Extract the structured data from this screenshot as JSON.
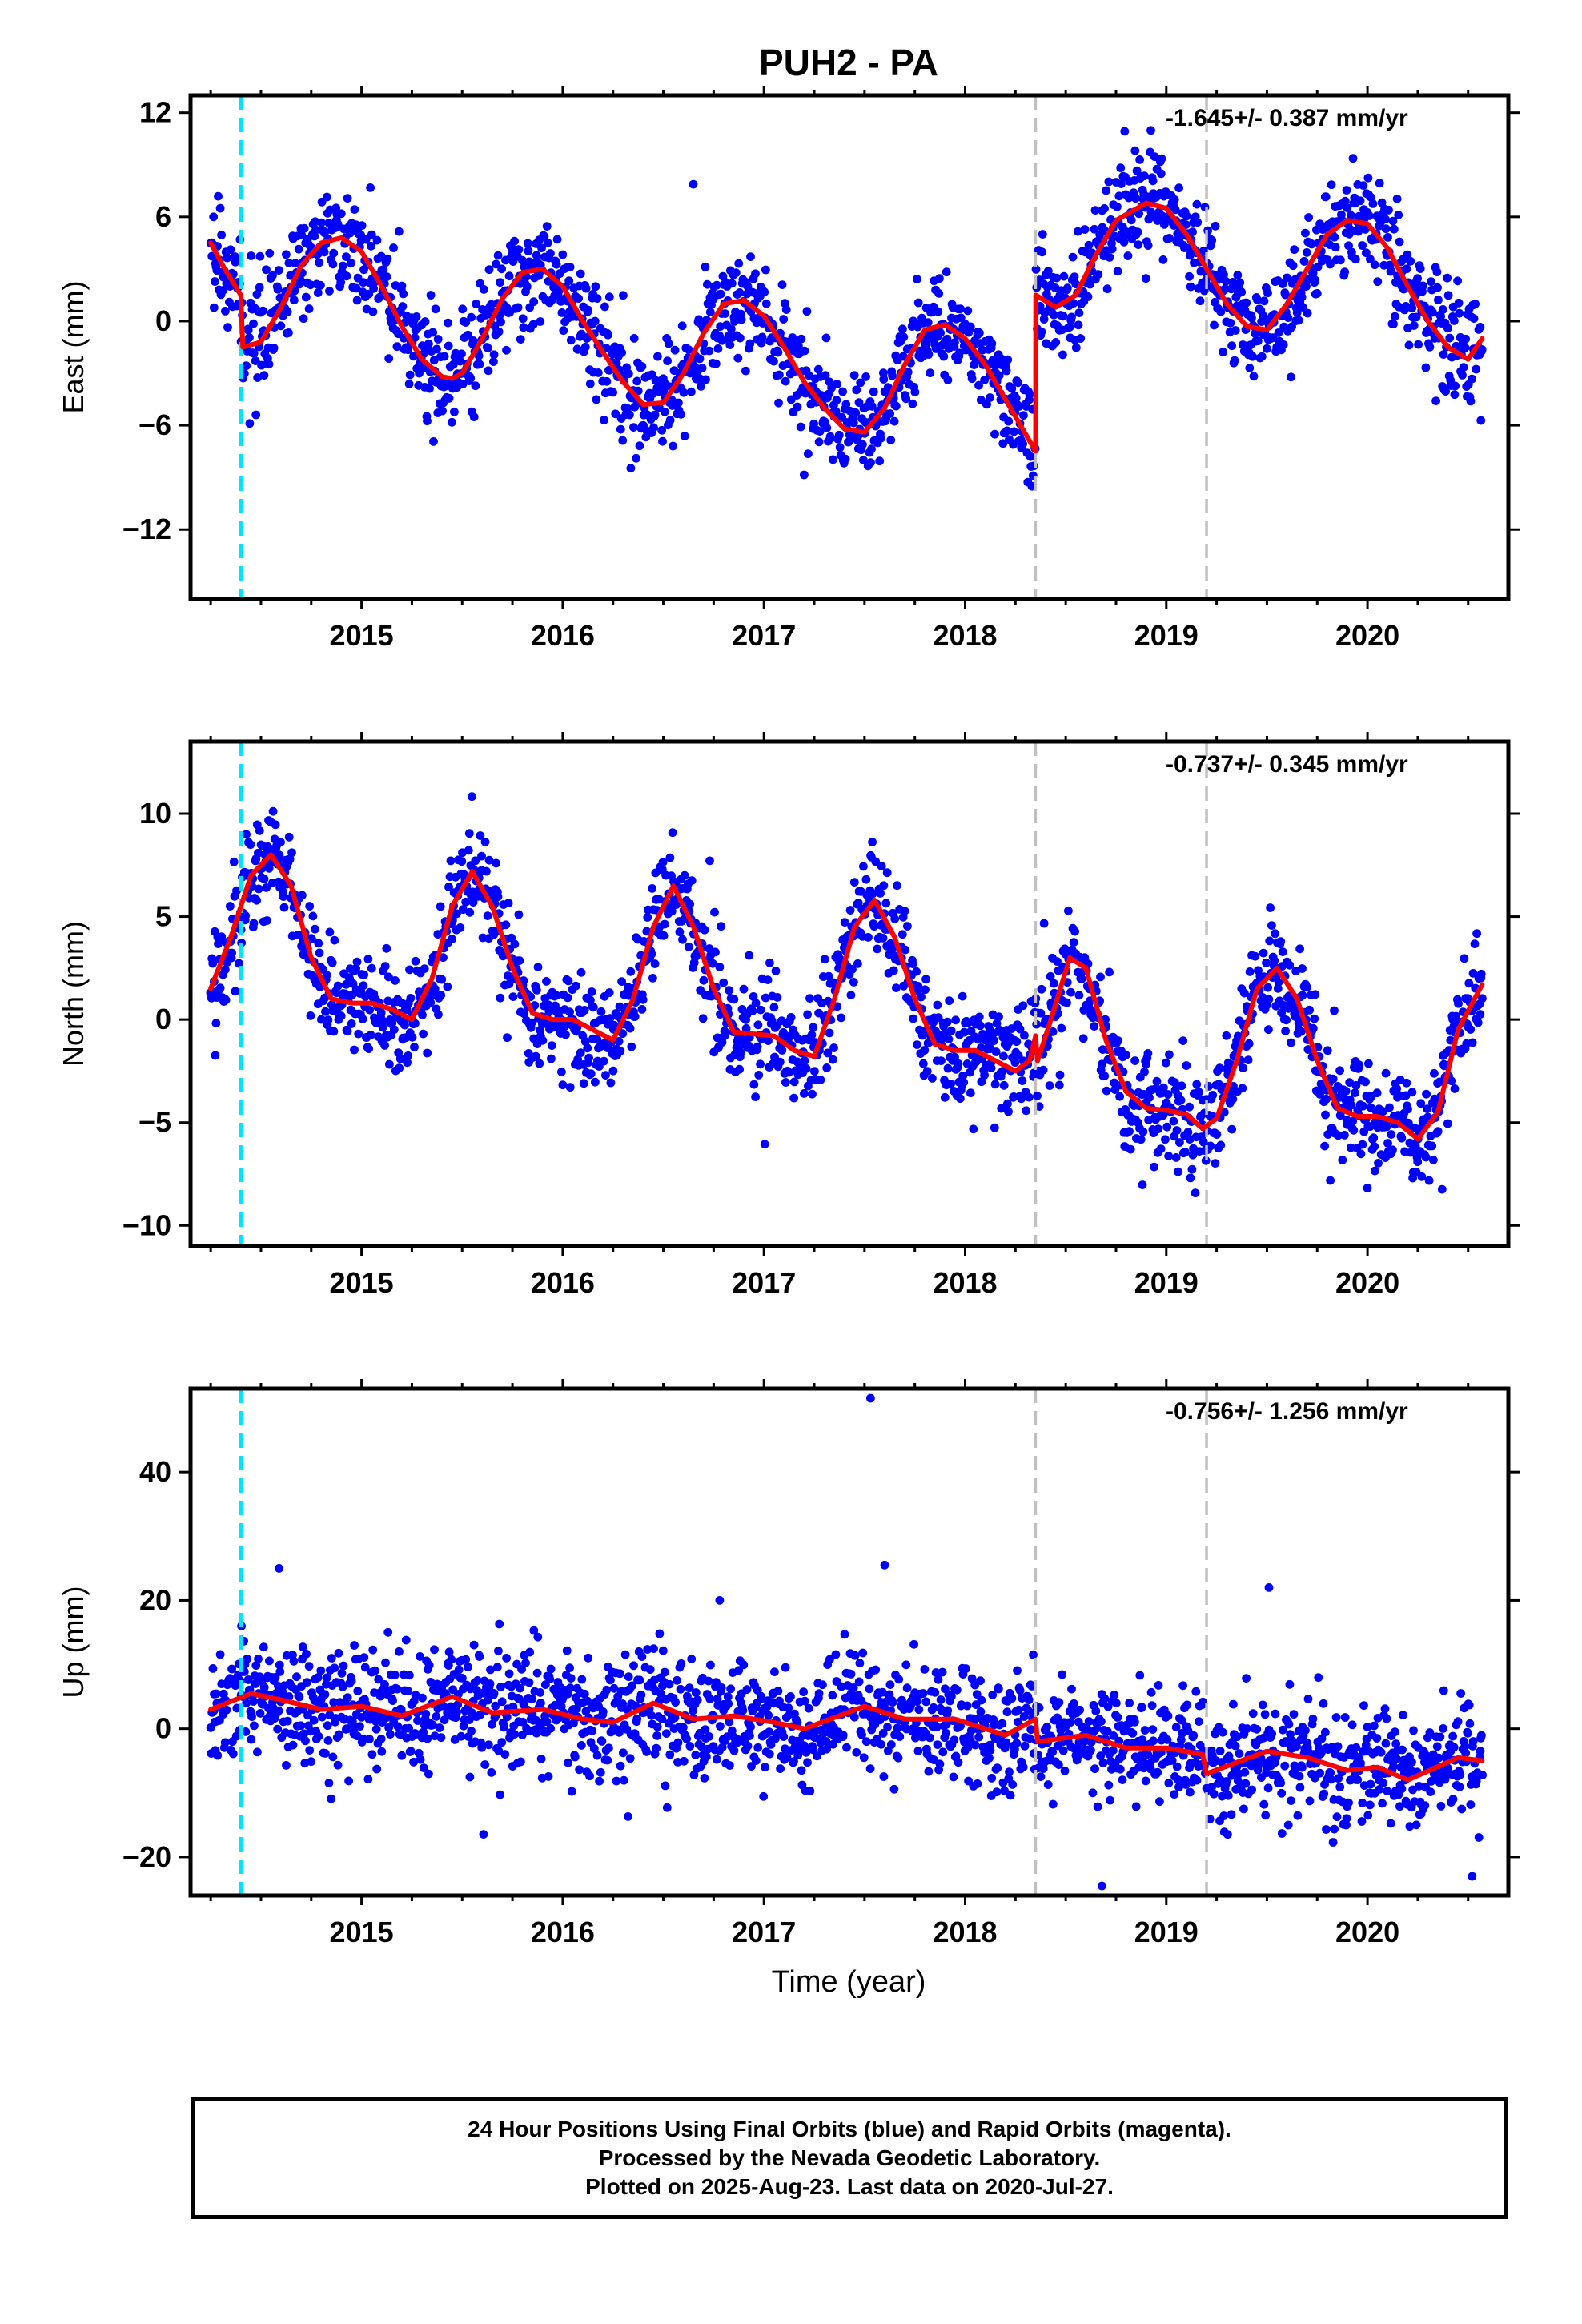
{
  "title": "PUH2 - PA",
  "xlabel": "Time (year)",
  "caption": {
    "line1": "24 Hour Positions Using Final Orbits (blue) and Rapid Orbits (magenta).",
    "line2": "Processed by the Nevada Geodetic Laboratory.",
    "line3": "Plotted on 2025-Aug-23. Last data on 2020-Jul-27."
  },
  "colors": {
    "points": "#0000ff",
    "model": "#ff0000",
    "antenna_change": "#00e5ff",
    "equipment_change": "#c0c0c0",
    "frame": "#000000"
  },
  "chart_data": [
    {
      "type": "scatter",
      "component": "east",
      "ylabel": "East (mm)",
      "rate_label": "-1.645+/- 0.387 mm/yr",
      "xlim": [
        2014.15,
        2020.7
      ],
      "ylim": [
        -16,
        13
      ],
      "xticks": [
        2015,
        2016,
        2017,
        2018,
        2019,
        2020
      ],
      "yticks": [
        12,
        6,
        0,
        -6,
        -12
      ],
      "ytick_labels": [
        "12",
        "6",
        "0",
        "−6",
        "−12"
      ],
      "discontinuities": {
        "cyan": [
          2014.4
        ],
        "gray": [
          2018.35,
          2019.2
        ]
      },
      "model": {
        "x": [
          2014.25,
          2014.32,
          2014.4,
          2014.41,
          2014.5,
          2014.6,
          2014.7,
          2014.8,
          2014.9,
          2015.0,
          2015.1,
          2015.2,
          2015.3,
          2015.4,
          2015.45,
          2015.5,
          2015.6,
          2015.7,
          2015.8,
          2015.9,
          2016.0,
          2016.1,
          2016.2,
          2016.3,
          2016.4,
          2016.5,
          2016.6,
          2016.7,
          2016.8,
          2016.9,
          2017.0,
          2017.1,
          2017.2,
          2017.3,
          2017.4,
          2017.5,
          2017.6,
          2017.7,
          2017.8,
          2017.9,
          2018.0,
          2018.1,
          2018.2,
          2018.3,
          2018.35,
          2018.351,
          2018.45,
          2018.55,
          2018.65,
          2018.75,
          2018.9,
          2019.0,
          2019.1,
          2019.2,
          2019.3,
          2019.4,
          2019.5,
          2019.6,
          2019.7,
          2019.8,
          2019.9,
          2020.0,
          2020.1,
          2020.2,
          2020.3,
          2020.4,
          2020.5,
          2020.57
        ],
        "y": [
          4.5,
          3.0,
          1.5,
          -1.5,
          -1.2,
          0.8,
          3.2,
          4.5,
          4.8,
          4.0,
          2.0,
          -0.3,
          -2.2,
          -3.2,
          -3.3,
          -3.0,
          -1.0,
          1.3,
          2.8,
          3.0,
          2.0,
          0.0,
          -1.8,
          -3.5,
          -4.8,
          -4.7,
          -3.0,
          -0.7,
          1.0,
          1.2,
          0.3,
          -1.5,
          -3.5,
          -5.0,
          -6.2,
          -6.4,
          -5.0,
          -2.5,
          -0.5,
          -0.2,
          -1.0,
          -2.5,
          -4.5,
          -6.5,
          -7.5,
          1.5,
          0.8,
          1.5,
          3.8,
          5.8,
          6.8,
          6.5,
          5.0,
          3.0,
          1.0,
          -0.3,
          -0.5,
          1.0,
          3.0,
          5.0,
          5.8,
          5.6,
          4.2,
          2.0,
          0.0,
          -1.5,
          -2.2,
          -1.0
        ]
      },
      "points": {
        "count": 1850,
        "noise_sd": 1.5
      }
    },
    {
      "type": "scatter",
      "component": "north",
      "ylabel": "North (mm)",
      "rate_label": "-0.737+/- 0.345 mm/yr",
      "xlim": [
        2014.15,
        2020.7
      ],
      "ylim": [
        -11,
        13.5
      ],
      "xticks": [
        2015,
        2016,
        2017,
        2018,
        2019,
        2020
      ],
      "yticks": [
        10,
        5,
        0,
        -5,
        -10
      ],
      "ytick_labels": [
        "10",
        "5",
        "0",
        "−5",
        "−10"
      ],
      "discontinuities": {
        "cyan": [
          2014.4
        ],
        "gray": [
          2018.35,
          2019.2
        ]
      },
      "model": {
        "x": [
          2014.25,
          2014.35,
          2014.45,
          2014.55,
          2014.65,
          2014.75,
          2014.85,
          2014.95,
          2015.05,
          2015.15,
          2015.25,
          2015.35,
          2015.45,
          2015.55,
          2015.65,
          2015.75,
          2015.85,
          2015.95,
          2016.05,
          2016.15,
          2016.25,
          2016.35,
          2016.45,
          2016.55,
          2016.65,
          2016.75,
          2016.85,
          2016.95,
          2017.05,
          2017.15,
          2017.25,
          2017.35,
          2017.45,
          2017.55,
          2017.65,
          2017.75,
          2017.85,
          2017.95,
          2018.05,
          2018.15,
          2018.25,
          2018.32,
          2018.35,
          2018.36,
          2018.42,
          2018.52,
          2018.6,
          2018.7,
          2018.8,
          2018.9,
          2019.0,
          2019.1,
          2019.18,
          2019.25,
          2019.35,
          2019.45,
          2019.55,
          2019.65,
          2019.75,
          2019.85,
          2019.95,
          2020.05,
          2020.15,
          2020.25,
          2020.35,
          2020.45,
          2020.57
        ],
        "y": [
          1.5,
          4.0,
          7.0,
          8.0,
          6.5,
          3.0,
          1.0,
          0.8,
          0.8,
          0.5,
          0.0,
          2.0,
          5.5,
          7.2,
          5.5,
          2.5,
          0.3,
          0.0,
          0.0,
          -0.5,
          -1.0,
          1.0,
          4.5,
          6.5,
          4.5,
          1.5,
          -0.6,
          -0.7,
          -0.8,
          -1.5,
          -1.8,
          1.0,
          4.5,
          5.8,
          4.0,
          1.0,
          -1.2,
          -1.5,
          -1.5,
          -2.0,
          -2.5,
          -2.0,
          -0.8,
          -2.0,
          -0.2,
          3.0,
          2.5,
          -1.0,
          -3.5,
          -4.3,
          -4.4,
          -4.6,
          -5.3,
          -4.8,
          -2.0,
          1.5,
          2.5,
          1.0,
          -2.0,
          -4.3,
          -4.7,
          -4.7,
          -5.0,
          -5.8,
          -4.5,
          -0.5,
          1.7
        ]
      },
      "points": {
        "count": 1850,
        "noise_sd": 1.3
      }
    },
    {
      "type": "scatter",
      "component": "up",
      "ylabel": "Up (mm)",
      "rate_label": "-0.756+/- 1.256 mm/yr",
      "xlim": [
        2014.15,
        2020.7
      ],
      "ylim": [
        -26,
        53
      ],
      "xticks": [
        2015,
        2016,
        2017,
        2018,
        2019,
        2020
      ],
      "yticks": [
        40,
        20,
        0,
        -20
      ],
      "ytick_labels": [
        "40",
        "20",
        "0",
        "−20"
      ],
      "discontinuities": {
        "cyan": [
          2014.4
        ],
        "gray": [
          2018.35,
          2019.2
        ]
      },
      "model": {
        "x": [
          2014.25,
          2014.45,
          2014.6,
          2014.8,
          2015.0,
          2015.2,
          2015.45,
          2015.65,
          2015.9,
          2016.1,
          2016.25,
          2016.45,
          2016.65,
          2016.85,
          2017.05,
          2017.2,
          2017.5,
          2017.7,
          2017.95,
          2018.2,
          2018.35,
          2018.36,
          2018.6,
          2018.8,
          2019.0,
          2019.18,
          2019.2,
          2019.5,
          2019.7,
          2019.9,
          2020.05,
          2020.2,
          2020.45,
          2020.57
        ],
        "y": [
          3.0,
          5.5,
          4.5,
          3.0,
          3.5,
          2.0,
          5.0,
          2.5,
          3.0,
          1.5,
          1.0,
          4.0,
          1.5,
          2.0,
          1.0,
          0.0,
          3.5,
          1.5,
          1.5,
          -1.0,
          1.5,
          -2.0,
          -1.0,
          -3.0,
          -3.0,
          -4.0,
          -7.0,
          -3.5,
          -4.5,
          -6.5,
          -6.0,
          -8.0,
          -4.5,
          -5.0
        ]
      },
      "points": {
        "count": 1850,
        "noise_sd": 4.6
      },
      "outliers": [
        {
          "x": 2017.53,
          "y": 51.5
        },
        {
          "x": 2017.6,
          "y": 25.5
        },
        {
          "x": 2014.59,
          "y": 25.0
        },
        {
          "x": 2019.51,
          "y": 22.0
        },
        {
          "x": 2016.78,
          "y": 20.0
        },
        {
          "x": 2018.68,
          "y": -24.5
        },
        {
          "x": 2020.52,
          "y": -23.0
        }
      ]
    }
  ]
}
